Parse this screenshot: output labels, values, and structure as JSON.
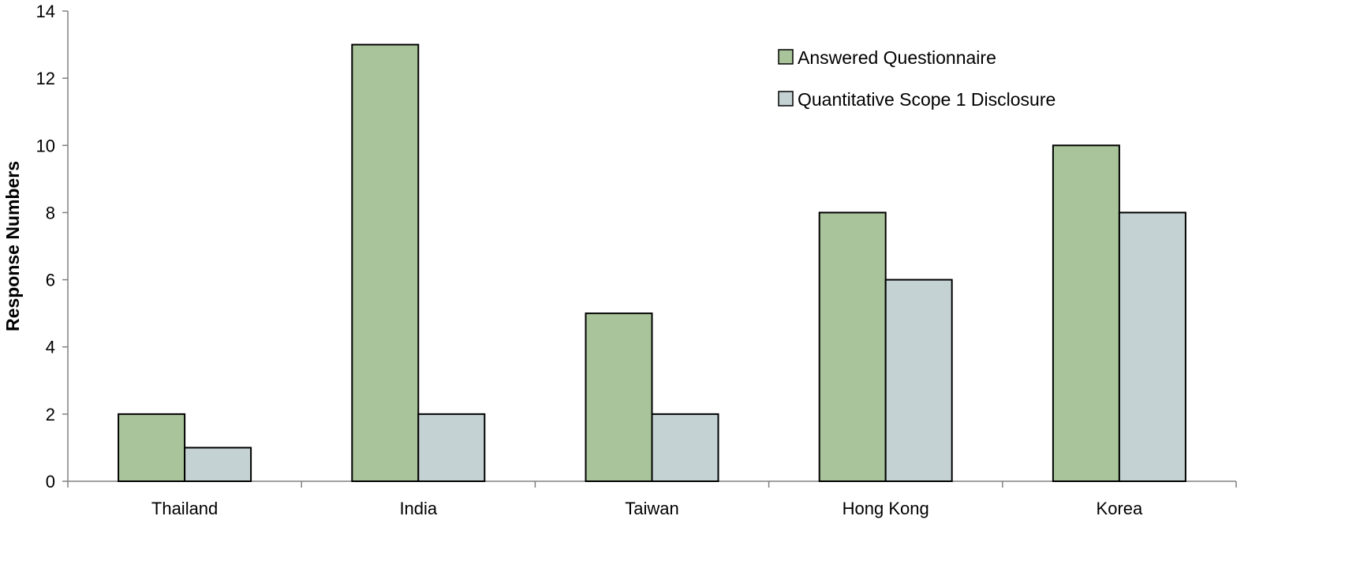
{
  "chart_data": {
    "type": "bar",
    "title": "",
    "xlabel": "",
    "ylabel": "Response Numbers",
    "ylim": [
      0,
      14
    ],
    "yticks": [
      0,
      2,
      4,
      6,
      8,
      10,
      12,
      14
    ],
    "grid": false,
    "legend_position": "top-right",
    "categories": [
      "Thailand",
      "India",
      "Taiwan",
      "Hong Kong",
      "Korea"
    ],
    "series": [
      {
        "name": "Answered Questionnaire",
        "values": [
          2,
          13,
          5,
          8,
          10
        ],
        "color": "#a9c49a"
      },
      {
        "name": "Quantitative Scope 1 Disclosure",
        "values": [
          1,
          2,
          2,
          6,
          8
        ],
        "color": "#c5d2d4"
      }
    ]
  }
}
